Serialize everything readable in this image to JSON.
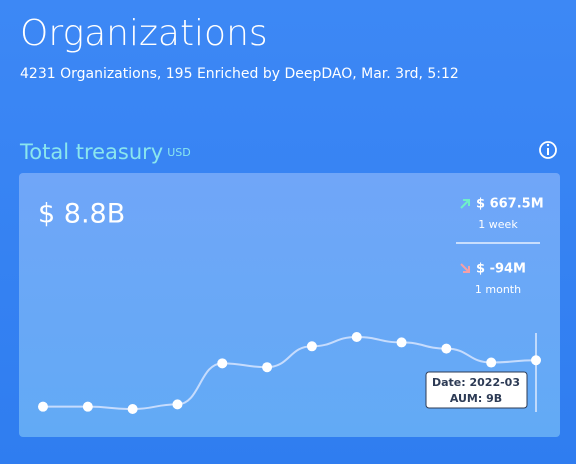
{
  "header": {
    "title": "Organizations",
    "subtitle": "4231 Organizations, 195 Enriched by DeepDAO, Mar. 3rd, 5:12"
  },
  "treasury": {
    "title": "Total treasury",
    "unit": "USD",
    "value": "$ 8.8B",
    "changes": [
      {
        "value": "$ 667.5M",
        "period": "1 week"
      },
      {
        "value": "$ -94M",
        "period": "1 month"
      }
    ]
  },
  "treasury_chart": {
    "type": "line",
    "values": [
      3.0,
      3.0,
      2.7,
      3.3,
      8.6,
      8.1,
      10.8,
      12.0,
      11.3,
      10.5,
      8.7,
      9.0
    ],
    "tooltip": {
      "date": "Date: 2022-03",
      "value_label": "AUM: 9B"
    }
  }
}
